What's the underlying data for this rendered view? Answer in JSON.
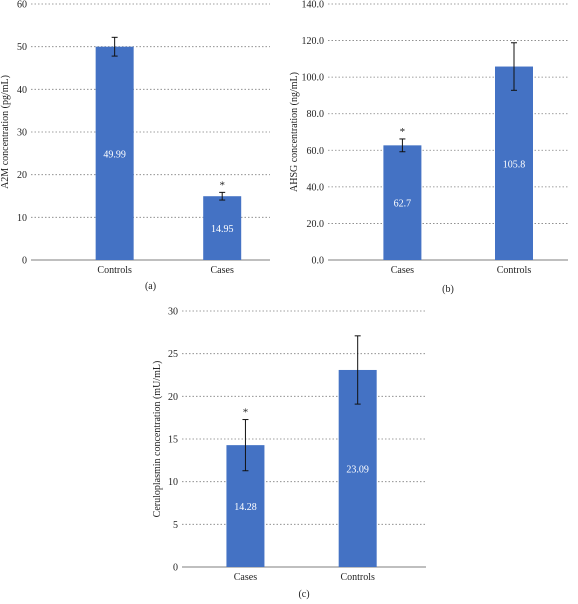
{
  "colors": {
    "bar": "#4472C4",
    "grid": "#808080",
    "text": "#222222"
  },
  "chart_data": [
    {
      "type": "bar",
      "panel_label": "(a)",
      "ylabel": "A2M concentration (pg/mL)",
      "categories": [
        "Controls",
        "Cases"
      ],
      "values": [
        49.99,
        14.95
      ],
      "value_labels": [
        "49.99",
        "14.95"
      ],
      "error": [
        2.2,
        0.9
      ],
      "significance": [
        "",
        "*"
      ],
      "ylim": [
        0,
        60
      ],
      "yticks": [
        0,
        10,
        20,
        30,
        40,
        50,
        60
      ],
      "ytick_labels": [
        "0",
        "10",
        "20",
        "30",
        "40",
        "50",
        "60"
      ],
      "grid": true
    },
    {
      "type": "bar",
      "panel_label": "(b)",
      "ylabel": "AHSG concentration (ng/mL)",
      "categories": [
        "Cases",
        "Controls"
      ],
      "values": [
        62.7,
        105.8
      ],
      "value_labels": [
        "62.7",
        "105.8"
      ],
      "error": [
        3.5,
        13
      ],
      "significance": [
        "*",
        ""
      ],
      "ylim": [
        0,
        140
      ],
      "yticks": [
        0,
        20,
        40,
        60,
        80,
        100,
        120,
        140
      ],
      "ytick_labels": [
        "0.0",
        "20.0",
        "40.0",
        "60.0",
        "80.0",
        "100.0",
        "120.0",
        "140.0"
      ],
      "grid": true
    },
    {
      "type": "bar",
      "panel_label": "(c)",
      "ylabel": "Ceruloplasmin concentration (mU/mL)",
      "categories": [
        "Cases",
        "Controls"
      ],
      "values": [
        14.28,
        23.09
      ],
      "value_labels": [
        "14.28",
        "23.09"
      ],
      "error": [
        3,
        4
      ],
      "significance": [
        "*",
        ""
      ],
      "ylim": [
        0,
        30
      ],
      "yticks": [
        0,
        5,
        10,
        15,
        20,
        25,
        30
      ],
      "ytick_labels": [
        "0",
        "5",
        "10",
        "15",
        "20",
        "25",
        "30"
      ],
      "grid": true
    }
  ]
}
